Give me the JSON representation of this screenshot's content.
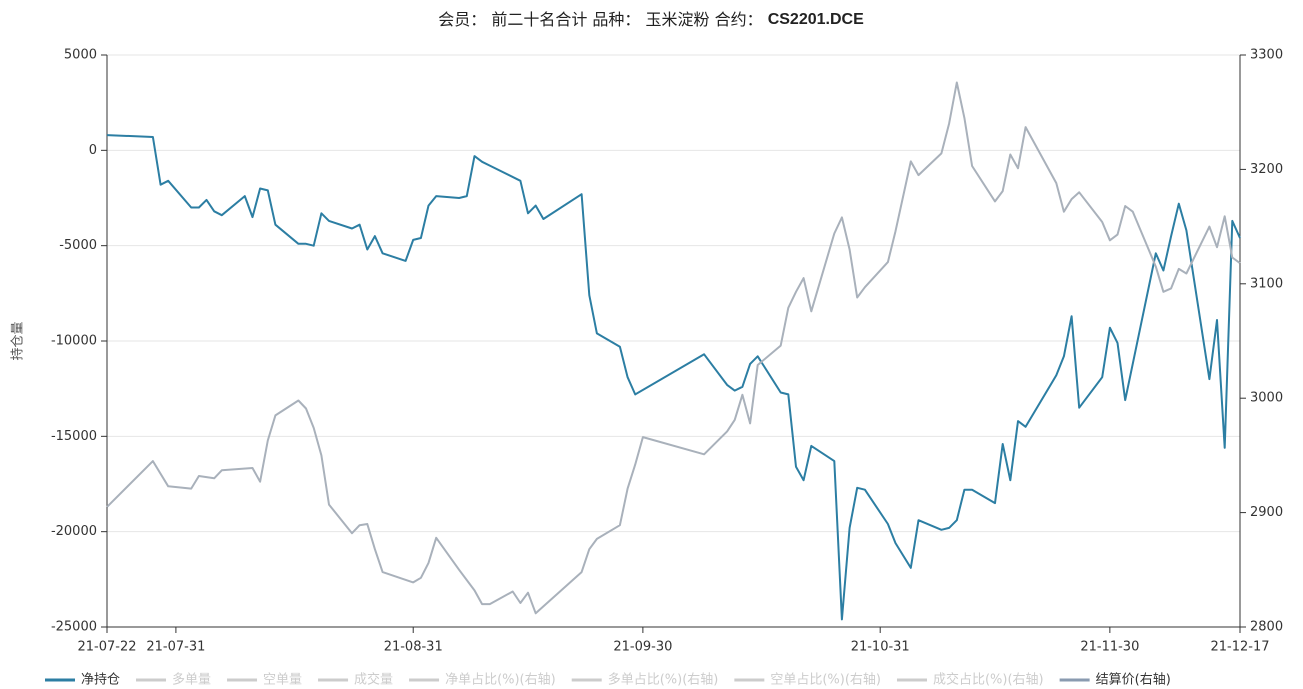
{
  "chart_data": {
    "type": "line",
    "title": "会员： 前二十名合计 品种： 玉米淀粉 合约：",
    "contract": "CS2201.DCE",
    "ylabel": "持仓量",
    "xlim": [
      "21-07-22",
      "21-12-17"
    ],
    "xticks": [
      "21-07-22",
      "21-07-31",
      "21-08-31",
      "21-09-30",
      "21-10-31",
      "21-11-30",
      "21-12-17"
    ],
    "ylim": [
      -25000,
      5000
    ],
    "yticks": [
      -25000,
      -20000,
      -15000,
      -10000,
      -5000,
      0,
      5000
    ],
    "y2lim": [
      2800,
      3300
    ],
    "y2ticks": [
      2800,
      2900,
      3000,
      3100,
      3200,
      3300
    ],
    "grid": true,
    "legend": "bottom",
    "series": [
      {
        "name": "净持仓",
        "color": "#2c7ea3",
        "visible": true,
        "x": [
          "21-07-22",
          "21-07-28",
          "21-07-29",
          "21-07-30",
          "21-08-02",
          "21-08-03",
          "21-08-04",
          "21-08-05",
          "21-08-06",
          "21-08-09",
          "21-08-10",
          "21-08-11",
          "21-08-12",
          "21-08-13",
          "21-08-16",
          "21-08-17",
          "21-08-18",
          "21-08-19",
          "21-08-20",
          "21-08-23",
          "21-08-24",
          "21-08-25",
          "21-08-26",
          "21-08-27",
          "21-08-30",
          "21-08-31",
          "21-09-01",
          "21-09-02",
          "21-09-03",
          "21-09-06",
          "21-09-07",
          "21-09-08",
          "21-09-09",
          "21-09-10",
          "21-09-14",
          "21-09-15",
          "21-09-16",
          "21-09-17",
          "21-09-22",
          "21-09-23",
          "21-09-24",
          "21-09-27",
          "21-09-28",
          "21-09-29",
          "21-10-08",
          "21-10-11",
          "21-10-12",
          "21-10-13",
          "21-10-14",
          "21-10-15",
          "21-10-18",
          "21-10-19",
          "21-10-20",
          "21-10-21",
          "21-10-22",
          "21-10-25",
          "21-10-26",
          "21-10-27",
          "21-10-28",
          "21-10-29",
          "21-11-01",
          "21-11-02",
          "21-11-04",
          "21-11-05",
          "21-11-08",
          "21-11-09",
          "21-11-10",
          "21-11-11",
          "21-11-12",
          "21-11-15",
          "21-11-16",
          "21-11-17",
          "21-11-18",
          "21-11-19",
          "21-11-23",
          "21-11-24",
          "21-11-25",
          "21-11-26",
          "21-11-29",
          "21-11-30",
          "21-12-01",
          "21-12-02",
          "21-12-06",
          "21-12-07",
          "21-12-08",
          "21-12-09",
          "21-12-10",
          "21-12-13",
          "21-12-14",
          "21-12-15",
          "21-12-16",
          "21-12-17"
        ],
        "values": [
          800,
          700,
          -1800,
          -1600,
          -3000,
          -3000,
          -2600,
          -3200,
          -3400,
          -2400,
          -3500,
          -2000,
          -2100,
          -3900,
          -4900,
          -4900,
          -5000,
          -3300,
          -3700,
          -4100,
          -3900,
          -5200,
          -4500,
          -5400,
          -5800,
          -4700,
          -4600,
          -2900,
          -2400,
          -2500,
          -2400,
          -300,
          -600,
          -800,
          -1600,
          -3300,
          -2900,
          -3600,
          -2300,
          -7600,
          -9600,
          -10300,
          -11900,
          -12800,
          -10700,
          -12300,
          -12600,
          -12400,
          -11200,
          -10800,
          -12700,
          -12800,
          -16600,
          -17300,
          -15500,
          -16300,
          -24600,
          -19800,
          -17700,
          -17800,
          -19600,
          -20600,
          -21900,
          -19400,
          -19900,
          -19800,
          -19400,
          -17800,
          -17800,
          -18500,
          -15400,
          -17300,
          -14200,
          -14500,
          -11800,
          -10800,
          -8700,
          -13500,
          -11900,
          -9300,
          -10100,
          -13100,
          -5400,
          -6300,
          -4500,
          -2800,
          -4200,
          -12000,
          -8900,
          -15600,
          -3700,
          -4600
        ]
      },
      {
        "name": "多单量",
        "color": "#cccccc",
        "visible": false
      },
      {
        "name": "空单量",
        "color": "#cccccc",
        "visible": false
      },
      {
        "name": "成交量",
        "color": "#cccccc",
        "visible": false
      },
      {
        "name": "净单占比(%)(右轴)",
        "color": "#cccccc",
        "visible": false
      },
      {
        "name": "多单占比(%)(右轴)",
        "color": "#cccccc",
        "visible": false
      },
      {
        "name": "空单占比(%)(右轴)",
        "color": "#cccccc",
        "visible": false
      },
      {
        "name": "成交占比(%)(右轴)",
        "color": "#cccccc",
        "visible": false
      },
      {
        "name": "结算价(右轴)",
        "color": "#a9b1bb",
        "legend_color": "#8a9bb0",
        "visible": true,
        "axis": "y2",
        "x": [
          "21-07-22",
          "21-07-28",
          "21-07-30",
          "21-08-02",
          "21-08-03",
          "21-08-05",
          "21-08-06",
          "21-08-10",
          "21-08-11",
          "21-08-12",
          "21-08-13",
          "21-08-16",
          "21-08-17",
          "21-08-18",
          "21-08-19",
          "21-08-20",
          "21-08-23",
          "21-08-24",
          "21-08-25",
          "21-08-26",
          "21-08-27",
          "21-08-31",
          "21-09-01",
          "21-09-02",
          "21-09-03",
          "21-09-06",
          "21-09-08",
          "21-09-09",
          "21-09-10",
          "21-09-13",
          "21-09-14",
          "21-09-15",
          "21-09-16",
          "21-09-22",
          "21-09-23",
          "21-09-24",
          "21-09-27",
          "21-09-28",
          "21-09-29",
          "21-09-30",
          "21-10-08",
          "21-10-11",
          "21-10-12",
          "21-10-13",
          "21-10-14",
          "21-10-15",
          "21-10-18",
          "21-10-19",
          "21-10-20",
          "21-10-21",
          "21-10-22",
          "21-10-25",
          "21-10-26",
          "21-10-27",
          "21-10-28",
          "21-10-29",
          "21-11-01",
          "21-11-02",
          "21-11-04",
          "21-11-05",
          "21-11-08",
          "21-11-09",
          "21-11-10",
          "21-11-11",
          "21-11-12",
          "21-11-15",
          "21-11-16",
          "21-11-17",
          "21-11-18",
          "21-11-19",
          "21-11-23",
          "21-11-24",
          "21-11-25",
          "21-11-26",
          "21-11-29",
          "21-11-30",
          "21-12-01",
          "21-12-02",
          "21-12-03",
          "21-12-06",
          "21-12-07",
          "21-12-08",
          "21-12-09",
          "21-12-10",
          "21-12-13",
          "21-12-14",
          "21-12-15",
          "21-12-16",
          "21-12-17"
        ],
        "values": [
          2905,
          2945,
          2923,
          2921,
          2932,
          2930,
          2937,
          2939,
          2927,
          2963,
          2985,
          2998,
          2991,
          2974,
          2950,
          2907,
          2882,
          2889,
          2890,
          2868,
          2848,
          2839,
          2843,
          2856,
          2878,
          2850,
          2832,
          2820,
          2820,
          2831,
          2821,
          2830,
          2812,
          2848,
          2868,
          2877,
          2889,
          2921,
          2942,
          2966,
          2951,
          2971,
          2981,
          3003,
          2978,
          3029,
          3046,
          3079,
          3093,
          3105,
          3076,
          3144,
          3158,
          3130,
          3088,
          3097,
          3119,
          3146,
          3207,
          3195,
          3214,
          3240,
          3276,
          3245,
          3203,
          3172,
          3181,
          3213,
          3201,
          3237,
          3188,
          3163,
          3174,
          3180,
          3154,
          3138,
          3143,
          3168,
          3163,
          3115,
          3093,
          3096,
          3113,
          3109,
          3150,
          3132,
          3159,
          3123,
          3118
        ]
      }
    ]
  }
}
